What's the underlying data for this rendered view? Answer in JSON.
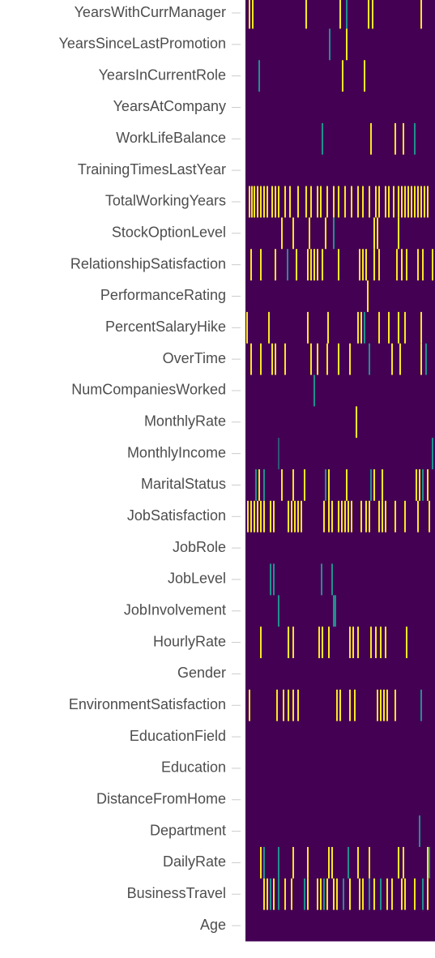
{
  "chart_data": {
    "type": "heatmap",
    "colors": [
      "#440154",
      "#21908d",
      "#fde725"
    ],
    "xlim": [
      0,
      234
    ],
    "rows": [
      {
        "label": "YearsWithCurrManager",
        "x": [
          5,
          9,
          75,
          117,
          125,
          152,
          157,
          217
        ],
        "values": [
          1,
          1,
          1,
          1,
          0.5,
          1,
          1,
          1
        ]
      },
      {
        "label": "YearsSinceLastPromotion",
        "x": [
          104,
          125
        ],
        "values": [
          0.5,
          1
        ]
      },
      {
        "label": "YearsInCurrentRole",
        "x": [
          17,
          120,
          147
        ],
        "values": [
          0.5,
          1,
          1
        ]
      },
      {
        "label": "YearsAtCompany",
        "x": [],
        "values": []
      },
      {
        "label": "WorkLifeBalance",
        "x": [
          95,
          155,
          185,
          195,
          209
        ],
        "values": [
          0.5,
          1,
          1,
          1,
          0.5
        ]
      },
      {
        "label": "TrainingTimesLastYear",
        "x": [],
        "values": []
      },
      {
        "label": "TotalWorkingYears",
        "x": [
          5,
          8,
          11,
          15,
          19,
          23,
          27,
          33,
          37,
          41,
          49,
          55,
          65,
          75,
          81,
          89,
          93,
          101,
          109,
          115,
          123,
          131,
          139,
          145,
          153,
          161,
          165,
          173,
          177,
          183,
          189,
          193,
          197,
          201,
          205,
          209,
          213,
          217,
          221,
          225
        ],
        "values": [
          1,
          1,
          1,
          1,
          1,
          1,
          1,
          1,
          1,
          1,
          1,
          1,
          1,
          1,
          1,
          1,
          1,
          1,
          1,
          1,
          1,
          1,
          1,
          1,
          1,
          1,
          1,
          1,
          1,
          1,
          1,
          1,
          1,
          1,
          1,
          1,
          1,
          1,
          1,
          1
        ]
      },
      {
        "label": "StockOptionLevel",
        "x": [
          45,
          59,
          79,
          99,
          109,
          159,
          163,
          189
        ],
        "values": [
          1,
          1,
          1,
          1,
          0.5,
          1,
          1,
          1
        ]
      },
      {
        "label": "RelationshipSatisfaction",
        "x": [
          7,
          19,
          37,
          52,
          63,
          77,
          81,
          85,
          89,
          95,
          115,
          141,
          145,
          149,
          159,
          165,
          187,
          193,
          199,
          213,
          219,
          231
        ],
        "values": [
          1,
          1,
          1,
          0.5,
          1,
          1,
          1,
          1,
          1,
          1,
          1,
          1,
          1,
          1,
          1,
          1,
          1,
          1,
          1,
          1,
          1,
          1
        ]
      },
      {
        "label": "PerformanceRating",
        "x": [
          151
        ],
        "values": [
          1
        ]
      },
      {
        "label": "PercentSalaryHike",
        "x": [
          2,
          29,
          77,
          102,
          139,
          143,
          147,
          165,
          177,
          189,
          197,
          217
        ],
        "values": [
          1,
          1,
          1,
          1,
          1,
          1,
          0.5,
          1,
          1,
          1,
          1,
          1
        ]
      },
      {
        "label": "OverTime",
        "x": [
          7,
          19,
          33,
          37,
          49,
          81,
          89,
          101,
          115,
          129,
          153,
          181,
          191,
          217,
          223
        ],
        "values": [
          1,
          1,
          1,
          1,
          1,
          1,
          1,
          1,
          1,
          1,
          0.5,
          1,
          1,
          1,
          0.5
        ]
      },
      {
        "label": "NumCompaniesWorked",
        "x": [
          85
        ],
        "values": [
          0.5
        ]
      },
      {
        "label": "MonthlyRate",
        "x": [
          137
        ],
        "values": [
          1
        ]
      },
      {
        "label": "MonthlyIncome",
        "x": [
          41,
          231
        ],
        "values": [
          0.3,
          0.5
        ]
      },
      {
        "label": "MaritalStatus",
        "x": [
          13,
          17,
          23,
          45,
          59,
          73,
          99,
          103,
          125,
          155,
          159,
          169,
          211,
          215,
          219,
          225
        ],
        "values": [
          0.5,
          1,
          0.5,
          1,
          1,
          1,
          0.5,
          1,
          1,
          0.5,
          1,
          1,
          1,
          1,
          0.5,
          1
        ]
      },
      {
        "label": "JobSatisfaction",
        "x": [
          3,
          7,
          11,
          15,
          19,
          23,
          31,
          35,
          53,
          57,
          61,
          65,
          69,
          97,
          103,
          107,
          115,
          119,
          123,
          127,
          131,
          143,
          149,
          153,
          165,
          169,
          173,
          185,
          197,
          213,
          227
        ],
        "values": [
          1,
          1,
          1,
          1,
          1,
          1,
          1,
          1,
          1,
          1,
          1,
          1,
          1,
          1,
          1,
          1,
          1,
          1,
          1,
          1,
          1,
          1,
          1,
          1,
          1,
          1,
          1,
          1,
          1,
          1,
          1
        ]
      },
      {
        "label": "JobRole",
        "x": [],
        "values": []
      },
      {
        "label": "JobLevel",
        "x": [
          31,
          35,
          94,
          107
        ],
        "values": [
          0.5,
          0.5,
          0.5,
          0.5
        ]
      },
      {
        "label": "JobInvolvement",
        "x": [
          41,
          109,
          111
        ],
        "values": [
          0.5,
          0.5,
          0.5
        ]
      },
      {
        "label": "HourlyRate",
        "x": [
          19,
          53,
          59,
          91,
          95,
          103,
          129,
          133,
          139,
          155,
          161,
          167,
          173,
          199
        ],
        "values": [
          1,
          1,
          1,
          1,
          1,
          1,
          1,
          1,
          1,
          1,
          1,
          1,
          1,
          1
        ]
      },
      {
        "label": "Gender",
        "x": [],
        "values": []
      },
      {
        "label": "EnvironmentSatisfaction",
        "x": [
          5,
          39,
          47,
          53,
          59,
          65,
          113,
          117,
          129,
          135,
          163,
          167,
          171,
          175,
          185,
          217
        ],
        "values": [
          1,
          1,
          1,
          1,
          1,
          1,
          1,
          1,
          1,
          1,
          1,
          1,
          1,
          1,
          1,
          0.5
        ]
      },
      {
        "label": "EducationField",
        "x": [],
        "values": []
      },
      {
        "label": "Education",
        "x": [],
        "values": []
      },
      {
        "label": "DistanceFromHome",
        "x": [],
        "values": []
      },
      {
        "label": "Department",
        "x": [
          215
        ],
        "values": [
          0.5
        ]
      },
      {
        "label": "DailyRate",
        "x": [
          19,
          23,
          41,
          59,
          77,
          103,
          107,
          127,
          139,
          153,
          189,
          195,
          225,
          227
        ],
        "values": [
          1,
          0.5,
          0.5,
          1,
          1,
          1,
          1,
          0.5,
          1,
          1,
          1,
          1,
          1,
          0.5
        ]
      },
      {
        "label": "BusinessTravel",
        "x": [
          23,
          27,
          31,
          35,
          41,
          49,
          57,
          73,
          77,
          89,
          93,
          97,
          101,
          109,
          113,
          121,
          129,
          141,
          145,
          153,
          159,
          167,
          175,
          181,
          193,
          197,
          209,
          219,
          225
        ],
        "values": [
          1,
          1,
          0.5,
          1,
          0.5,
          1,
          1,
          0.5,
          1,
          1,
          1,
          0.5,
          1,
          1,
          1,
          0.5,
          1,
          1,
          1,
          0.5,
          1,
          0.5,
          1,
          1,
          1,
          1,
          1,
          0.5,
          1
        ]
      },
      {
        "label": "Age",
        "x": [],
        "values": []
      }
    ]
  }
}
